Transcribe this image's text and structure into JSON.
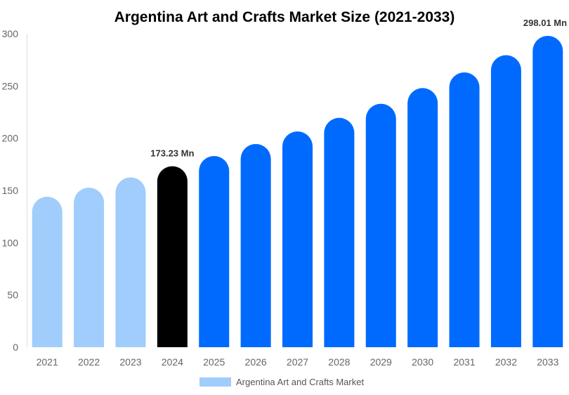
{
  "chart_data": {
    "type": "bar",
    "title": "Argentina Art and Crafts Market Size (2021-2033)",
    "categories": [
      "2021",
      "2022",
      "2023",
      "2024",
      "2025",
      "2026",
      "2027",
      "2028",
      "2029",
      "2030",
      "2031",
      "2032",
      "2033"
    ],
    "series": [
      {
        "name": "Argentina Art and Crafts Market",
        "values": [
          144,
          152.7,
          162.5,
          173.23,
          183,
          194.5,
          206.5,
          219.5,
          233,
          248,
          263,
          279.5,
          298.01
        ]
      }
    ],
    "bar_colors": [
      "#a0cdfc",
      "#a0cdfc",
      "#a0cdfc",
      "#000000",
      "#006aff",
      "#006aff",
      "#006aff",
      "#006aff",
      "#006aff",
      "#006aff",
      "#006aff",
      "#006aff",
      "#006aff"
    ],
    "data_labels": [
      {
        "category": "2024",
        "text": "173.23 Mn"
      },
      {
        "category": "2033",
        "text": "298.01 Mn"
      }
    ],
    "ylim": [
      0,
      300
    ],
    "yticks": [
      0,
      50,
      100,
      150,
      200,
      250,
      300
    ],
    "xlabel": "",
    "ylabel": "",
    "grid": false,
    "legend": {
      "position": "bottom",
      "label": "Argentina Art and Crafts Market",
      "color": "#a0cdfc"
    }
  }
}
